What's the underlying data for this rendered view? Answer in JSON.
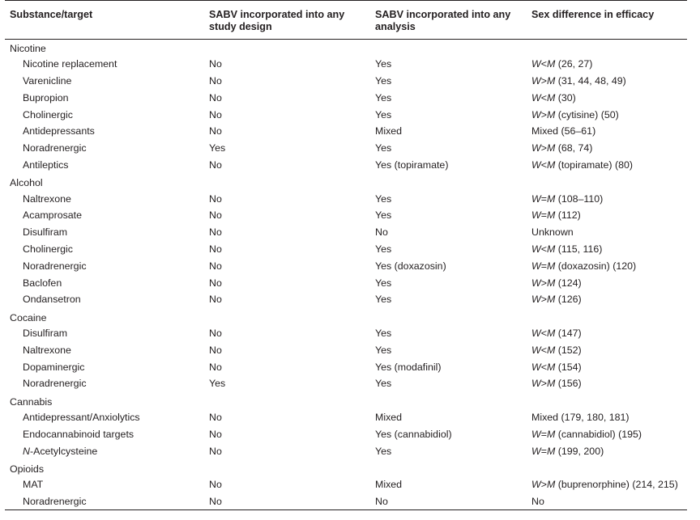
{
  "headers": {
    "substance": "Substance/target",
    "study_design": "SABV incorporated into any study design",
    "analysis": "SABV incorporated into any analysis",
    "sex_difference": "Sex difference in efficacy"
  },
  "groups": [
    {
      "name": "Nicotine",
      "rows": [
        {
          "target": "Nicotine replacement",
          "design": "No",
          "analysis": "Yes",
          "sex": "W<M (26, 27)"
        },
        {
          "target": "Varenicline",
          "design": "No",
          "analysis": "Yes",
          "sex": "W>M (31, 44, 48, 49)"
        },
        {
          "target": "Bupropion",
          "design": "No",
          "analysis": "Yes",
          "sex": "W<M (30)"
        },
        {
          "target": "Cholinergic",
          "design": "No",
          "analysis": "Yes",
          "sex": "W>M (cytisine) (50)"
        },
        {
          "target": "Antidepressants",
          "design": "No",
          "analysis": "Mixed",
          "sex": "Mixed (56–61)"
        },
        {
          "target": "Noradrenergic",
          "design": "Yes",
          "analysis": "Yes",
          "sex": "W>M (68, 74)"
        },
        {
          "target": "Antileptics",
          "design": "No",
          "analysis": "Yes (topiramate)",
          "sex": "W<M (topiramate) (80)"
        }
      ]
    },
    {
      "name": "Alcohol",
      "rows": [
        {
          "target": "Naltrexone",
          "design": "No",
          "analysis": "Yes",
          "sex": "W=M (108–110)"
        },
        {
          "target": "Acamprosate",
          "design": "No",
          "analysis": "Yes",
          "sex": "W=M (112)"
        },
        {
          "target": "Disulfiram",
          "design": "No",
          "analysis": "No",
          "sex": "Unknown"
        },
        {
          "target": "Cholinergic",
          "design": "No",
          "analysis": "Yes",
          "sex": "W<M (115, 116)"
        },
        {
          "target": "Noradrenergic",
          "design": "No",
          "analysis": "Yes (doxazosin)",
          "sex": "W=M (doxazosin) (120)"
        },
        {
          "target": "Baclofen",
          "design": "No",
          "analysis": "Yes",
          "sex": "W>M (124)"
        },
        {
          "target": "Ondansetron",
          "design": "No",
          "analysis": "Yes",
          "sex": "W>M (126)"
        }
      ]
    },
    {
      "name": "Cocaine",
      "rows": [
        {
          "target": "Disulfiram",
          "design": "No",
          "analysis": "Yes",
          "sex": "W<M (147)"
        },
        {
          "target": "Naltrexone",
          "design": "No",
          "analysis": "Yes",
          "sex": "W<M (152)"
        },
        {
          "target": "Dopaminergic",
          "design": "No",
          "analysis": "Yes (modafinil)",
          "sex": "W<M (154)"
        },
        {
          "target": "Noradrenergic",
          "design": "Yes",
          "analysis": "Yes",
          "sex": "W>M (156)"
        }
      ]
    },
    {
      "name": "Cannabis",
      "rows": [
        {
          "target": "Antidepressant/Anxiolytics",
          "design": "No",
          "analysis": "Mixed",
          "sex": "Mixed (179, 180, 181)"
        },
        {
          "target": "Endocannabinoid targets",
          "design": "No",
          "analysis": "Yes (cannabidiol)",
          "sex": "W=M (cannabidiol) (195)"
        },
        {
          "target": "N-Acetylcysteine",
          "design": "No",
          "analysis": "Yes",
          "sex": "W=M (199, 200)"
        }
      ]
    },
    {
      "name": "Opioids",
      "rows": [
        {
          "target": "MAT",
          "design": "No",
          "analysis": "Mixed",
          "sex": "W>M (buprenorphine) (214, 215)"
        },
        {
          "target": "Noradrenergic",
          "design": "No",
          "analysis": "No",
          "sex": "No"
        }
      ]
    }
  ]
}
